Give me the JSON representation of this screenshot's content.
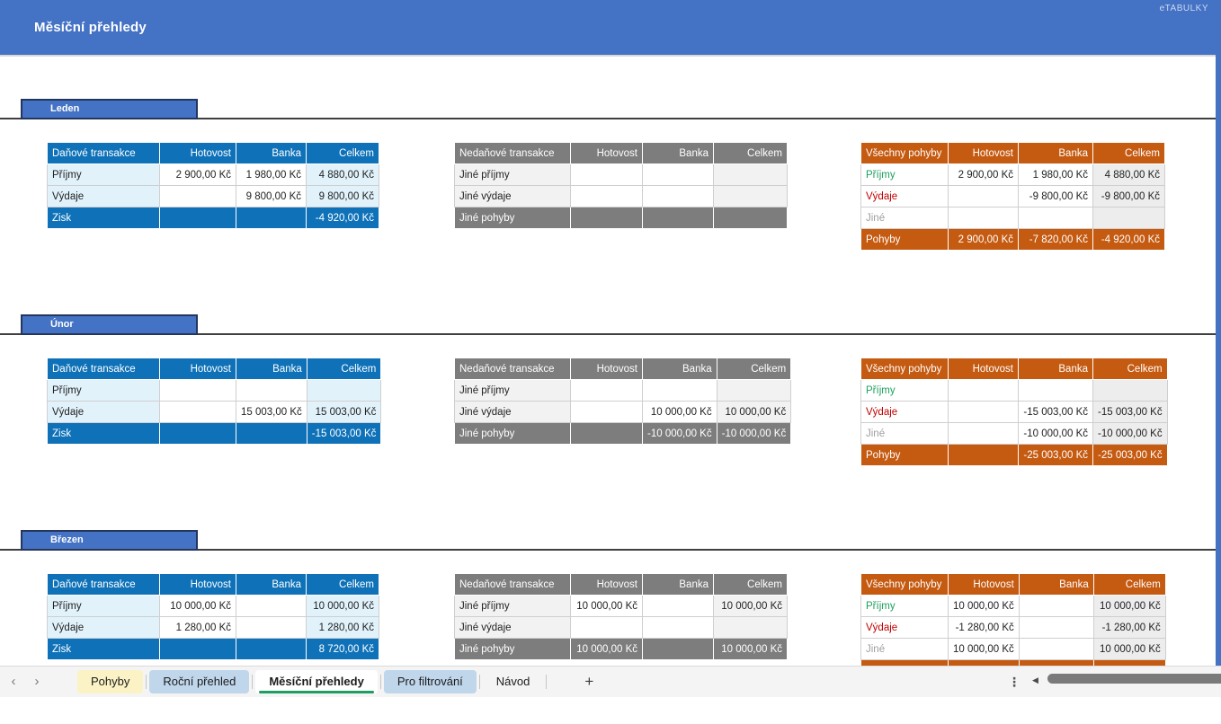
{
  "app": {
    "title": "Měsíční přehledy",
    "brand": "eTABULKY"
  },
  "columns": [
    "Hotovost",
    "Banka",
    "Celkem"
  ],
  "titles": {
    "tax": "Daňové transakce",
    "nontax": "Nedaňové transakce",
    "all": "Všechny pohyby"
  },
  "icons": {
    "prev": "‹",
    "next": "›",
    "menu": "⋮",
    "scroll_left": "◀",
    "add": "+"
  },
  "colors": {
    "header_blue": "#4472C4",
    "tax_accent": "#0F72B8",
    "tax_tint": "#E1F2FB",
    "nontax_accent": "#7D7D7D",
    "nontax_tint": "#F2F2F2",
    "all_accent": "#C55A11",
    "all_tint": "#EDEDED",
    "income_green": "#1FA05E",
    "expense_red": "#C00000",
    "other_gray": "#9E9E9E",
    "active_tab_underline": "#1E9E62",
    "tab_yellow": "#FBF3C5",
    "tab_blue": "#BFD6EB"
  },
  "months": [
    {
      "name": "Leden",
      "tax": {
        "rows": [
          {
            "label": "Příjmy",
            "values": [
              "2 900,00 Kč",
              "1 980,00 Kč",
              "4 880,00 Kč"
            ]
          },
          {
            "label": "Výdaje",
            "values": [
              "",
              "9 800,00 Kč",
              "9 800,00 Kč"
            ]
          }
        ],
        "footer": {
          "label": "Zisk",
          "values": [
            "",
            "",
            "-4 920,00 Kč"
          ]
        }
      },
      "nontax": {
        "rows": [
          {
            "label": "Jiné příjmy",
            "values": [
              "",
              "",
              ""
            ]
          },
          {
            "label": "Jiné výdaje",
            "values": [
              "",
              "",
              ""
            ]
          }
        ],
        "footer": {
          "label": "Jiné pohyby",
          "values": [
            "",
            "",
            ""
          ]
        }
      },
      "all": {
        "rows": [
          {
            "label": "Příjmy",
            "values": [
              "2 900,00 Kč",
              "1 980,00 Kč",
              "4 880,00 Kč"
            ]
          },
          {
            "label": "Výdaje",
            "values": [
              "",
              "-9 800,00 Kč",
              "-9 800,00 Kč"
            ]
          },
          {
            "label": "Jiné",
            "values": [
              "",
              "",
              ""
            ]
          }
        ],
        "footer": {
          "label": "Pohyby",
          "values": [
            "2 900,00 Kč",
            "-7 820,00 Kč",
            "-4 920,00 Kč"
          ]
        }
      }
    },
    {
      "name": "Únor",
      "tax": {
        "rows": [
          {
            "label": "Příjmy",
            "values": [
              "",
              "",
              ""
            ]
          },
          {
            "label": "Výdaje",
            "values": [
              "",
              "15 003,00 Kč",
              "15 003,00 Kč"
            ]
          }
        ],
        "footer": {
          "label": "Zisk",
          "values": [
            "",
            "",
            "-15 003,00 Kč"
          ]
        }
      },
      "nontax": {
        "rows": [
          {
            "label": "Jiné příjmy",
            "values": [
              "",
              "",
              ""
            ]
          },
          {
            "label": "Jiné výdaje",
            "values": [
              "",
              "10 000,00 Kč",
              "10 000,00 Kč"
            ]
          }
        ],
        "footer": {
          "label": "Jiné pohyby",
          "values": [
            "",
            "-10 000,00 Kč",
            "-10 000,00 Kč"
          ]
        }
      },
      "all": {
        "rows": [
          {
            "label": "Příjmy",
            "values": [
              "",
              "",
              ""
            ]
          },
          {
            "label": "Výdaje",
            "values": [
              "",
              "-15 003,00 Kč",
              "-15 003,00 Kč"
            ]
          },
          {
            "label": "Jiné",
            "values": [
              "",
              "-10 000,00 Kč",
              "-10 000,00 Kč"
            ]
          }
        ],
        "footer": {
          "label": "Pohyby",
          "values": [
            "",
            "-25 003,00 Kč",
            "-25 003,00 Kč"
          ]
        }
      }
    },
    {
      "name": "Březen",
      "tax": {
        "rows": [
          {
            "label": "Příjmy",
            "values": [
              "10 000,00 Kč",
              "",
              "10 000,00 Kč"
            ]
          },
          {
            "label": "Výdaje",
            "values": [
              "1 280,00 Kč",
              "",
              "1 280,00 Kč"
            ]
          }
        ],
        "footer": {
          "label": "Zisk",
          "values": [
            "",
            "",
            "8 720,00 Kč"
          ]
        }
      },
      "nontax": {
        "rows": [
          {
            "label": "Jiné příjmy",
            "values": [
              "10 000,00 Kč",
              "",
              "10 000,00 Kč"
            ]
          },
          {
            "label": "Jiné výdaje",
            "values": [
              "",
              "",
              ""
            ]
          }
        ],
        "footer": {
          "label": "Jiné pohyby",
          "values": [
            "10 000,00 Kč",
            "",
            "10 000,00 Kč"
          ]
        }
      },
      "all": {
        "rows": [
          {
            "label": "Příjmy",
            "values": [
              "10 000,00 Kč",
              "",
              "10 000,00 Kč"
            ]
          },
          {
            "label": "Výdaje",
            "values": [
              "-1 280,00 Kč",
              "",
              "-1 280,00 Kč"
            ]
          },
          {
            "label": "Jiné",
            "values": [
              "10 000,00 Kč",
              "",
              "10 000,00 Kč"
            ]
          }
        ],
        "footer": {
          "label": "",
          "values": [
            "",
            "",
            ""
          ]
        }
      }
    }
  ],
  "tabbar": {
    "tabs": [
      {
        "label": "Pohyby"
      },
      {
        "label": "Roční přehled"
      },
      {
        "label": "Měsíční přehledy",
        "active": true
      },
      {
        "label": "Pro filtrování"
      },
      {
        "label": "Návod"
      }
    ]
  }
}
